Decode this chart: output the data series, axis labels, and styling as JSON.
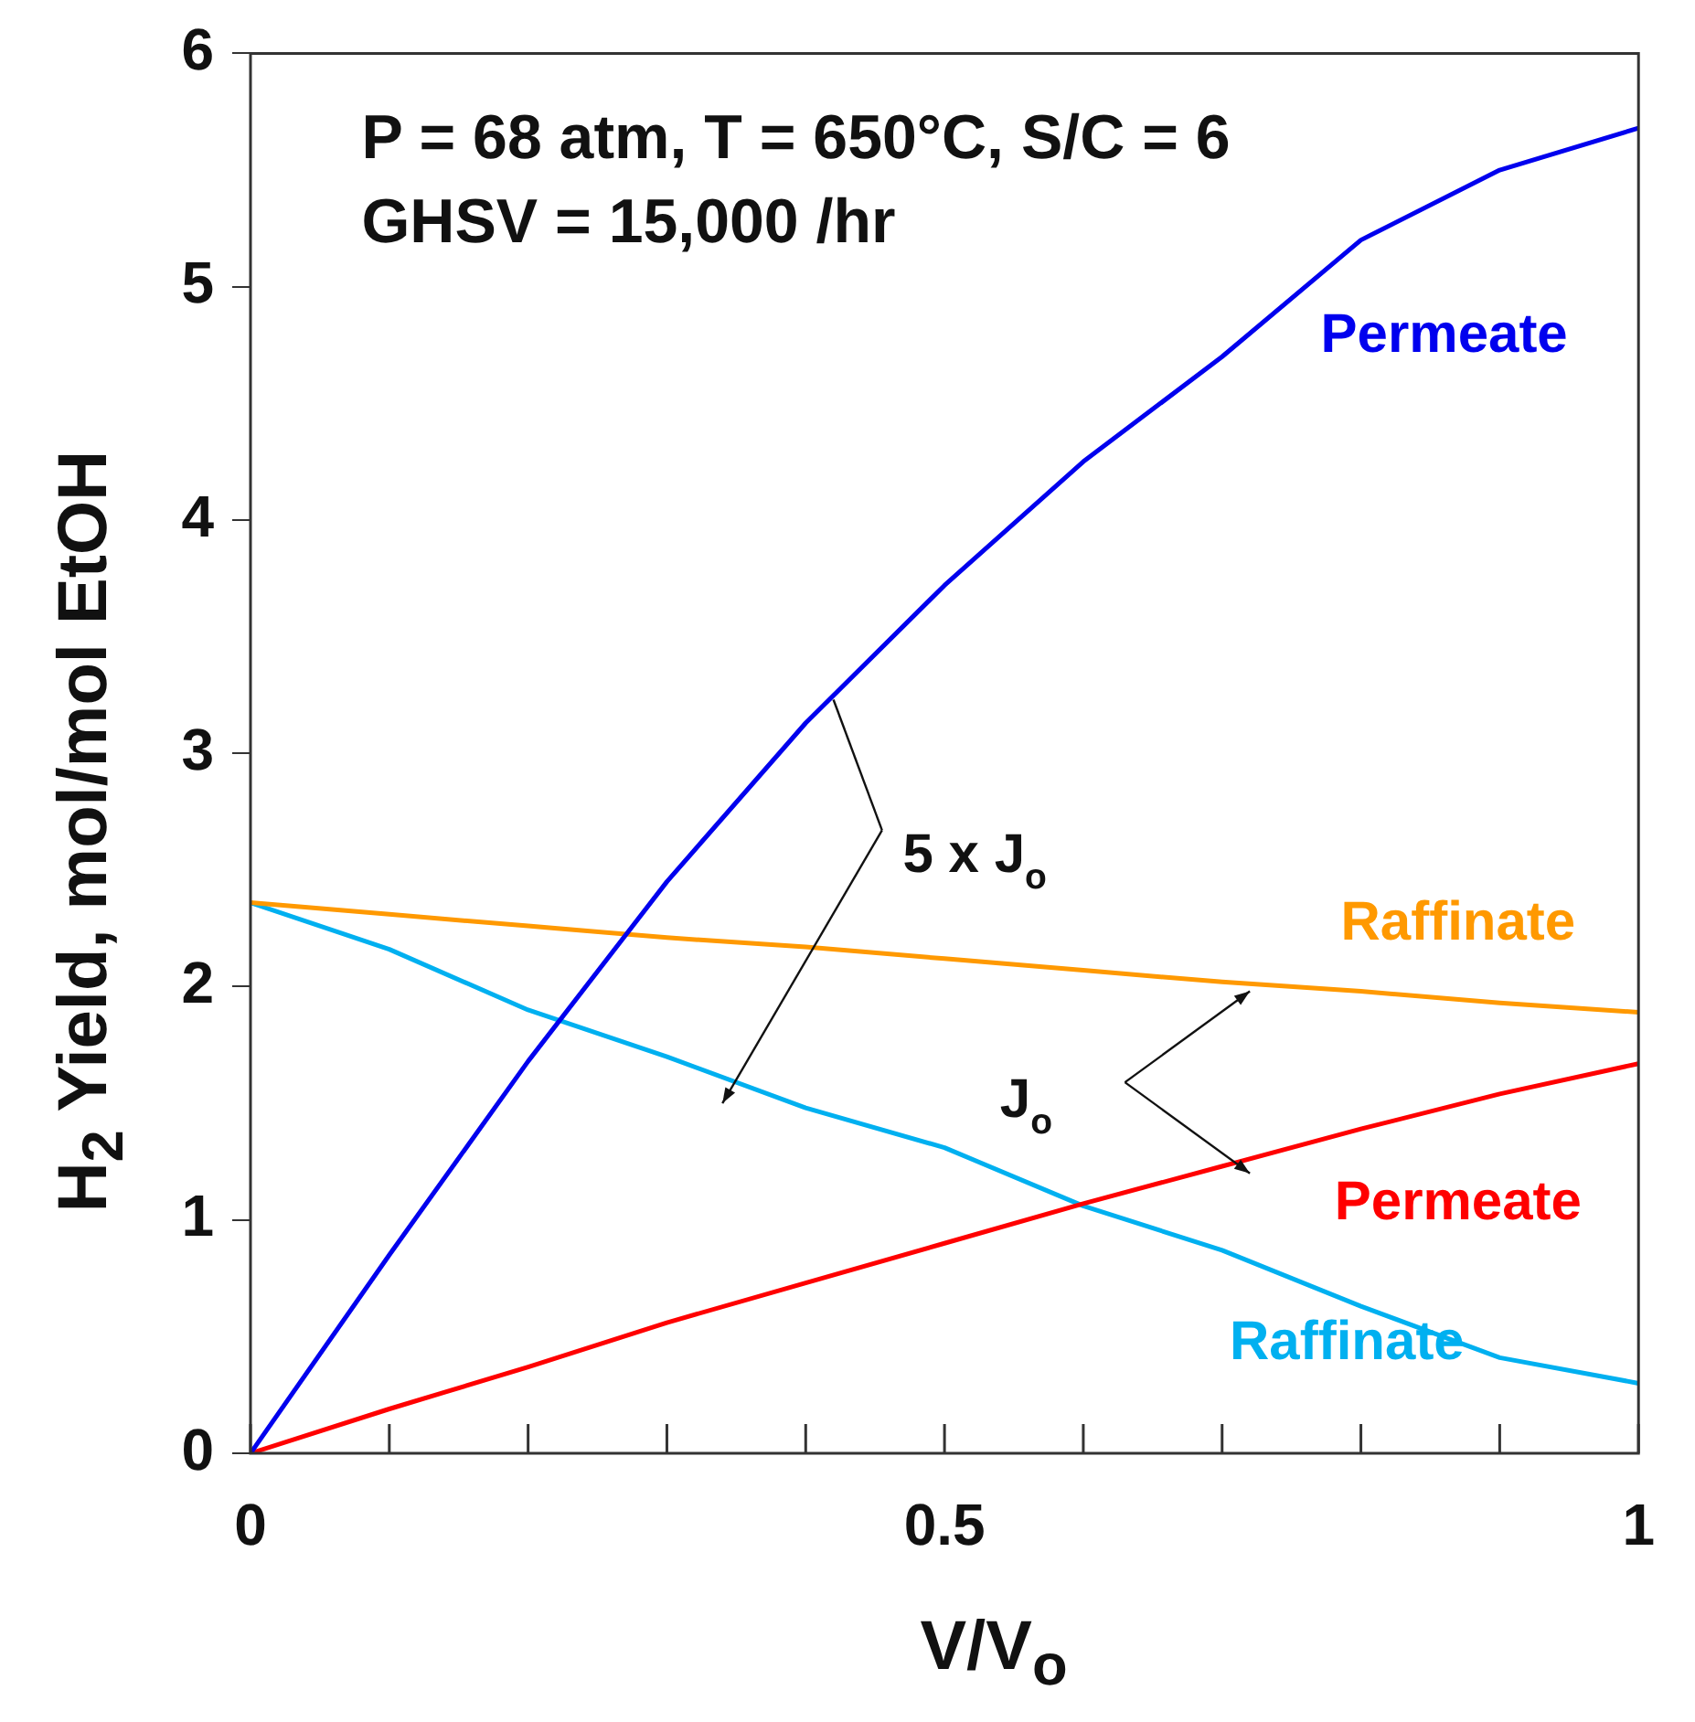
{
  "chart_data": {
    "type": "line",
    "xlabel": "V/V$_{o}$",
    "ylabel": "H$_{2}$ Yield, mol/mol EtOH",
    "x": [
      0,
      0.1,
      0.2,
      0.3,
      0.4,
      0.5,
      0.6,
      0.7,
      0.8,
      0.9,
      1
    ],
    "series": [
      {
        "name": "Permeate",
        "color": "#0000ee",
        "values": [
          0,
          0.85,
          1.68,
          2.45,
          3.13,
          3.72,
          4.25,
          4.7,
          5.2,
          5.5,
          5.68
        ]
      },
      {
        "name": "Raffinate",
        "color": "#ff9900",
        "values": [
          2.36,
          2.31,
          2.26,
          2.21,
          2.17,
          2.12,
          2.07,
          2.02,
          1.98,
          1.93,
          1.89
        ]
      },
      {
        "name": "Permeate",
        "color": "#ff0000",
        "values": [
          0,
          0.19,
          0.37,
          0.56,
          0.73,
          0.9,
          1.07,
          1.23,
          1.39,
          1.54,
          1.67
        ]
      },
      {
        "name": "Raffinate",
        "color": "#00b0f0",
        "values": [
          2.36,
          2.16,
          1.9,
          1.7,
          1.48,
          1.31,
          1.06,
          0.87,
          0.63,
          0.41,
          0.3
        ]
      }
    ],
    "xlim": [
      0,
      1
    ],
    "xticks": [
      0,
      {
        "value": 0.1,
        "label": null
      },
      {
        "value": 0.2,
        "label": null
      },
      {
        "value": 0.3,
        "label": null
      },
      {
        "value": 0.4,
        "label": null
      },
      0.5,
      {
        "value": 0.6,
        "label": null
      },
      {
        "value": 0.7,
        "label": null
      },
      {
        "value": 0.8,
        "label": null
      },
      {
        "value": 0.9,
        "label": null
      },
      1
    ],
    "ylim": [
      0,
      6
    ],
    "yticks": [
      0,
      1,
      2,
      3,
      4,
      5,
      6
    ],
    "annotations": [
      "P = 68 atm, T = 650°C, S/C = 6",
      "GHSV = 15,000 /hr",
      {
        "text": "5 x J$_{o}$",
        "x": 0.42,
        "y": 3.23
      },
      "J$_{o}$"
    ],
    "grid": false,
    "legend": false,
    "marker": "none",
    "line_style": "solid"
  }
}
